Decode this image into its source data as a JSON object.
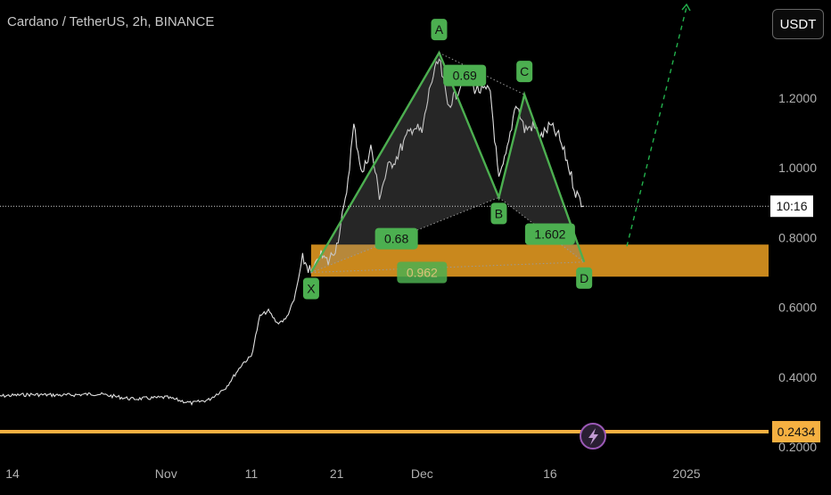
{
  "header": {
    "title": "Cardano / TetherUS, 2h, BINANCE",
    "currency": "USDT"
  },
  "chart_data": {
    "type": "line",
    "ylim": [
      0.2,
      1.35
    ],
    "y_ticks": [
      0.2,
      0.4,
      0.6,
      0.8,
      1.0,
      1.2
    ],
    "y_tick_labels": [
      "0.2000",
      "0.4000",
      "0.6000",
      "0.8000",
      "1.0000",
      "1.2000"
    ],
    "x_ticks": [
      {
        "label": "14",
        "date": "2024-10-14"
      },
      {
        "label": "Nov",
        "date": "2024-11-01"
      },
      {
        "label": "11",
        "date": "2024-11-11"
      },
      {
        "label": "21",
        "date": "2024-11-21"
      },
      {
        "label": "Dec",
        "date": "2024-12-01"
      },
      {
        "label": "16",
        "date": "2024-12-16"
      },
      {
        "label": "2025",
        "date": "2025-01-01"
      }
    ],
    "price_series": [
      [
        "2024-10-12",
        0.345
      ],
      [
        "2024-10-16",
        0.35
      ],
      [
        "2024-10-20",
        0.348
      ],
      [
        "2024-10-24",
        0.352
      ],
      [
        "2024-10-28",
        0.337
      ],
      [
        "2024-11-01",
        0.342
      ],
      [
        "2024-11-04",
        0.325
      ],
      [
        "2024-11-06",
        0.335
      ],
      [
        "2024-11-08",
        0.37
      ],
      [
        "2024-11-10",
        0.44
      ],
      [
        "2024-11-11",
        0.46
      ],
      [
        "2024-11-12",
        0.575
      ],
      [
        "2024-11-13",
        0.59
      ],
      [
        "2024-11-14",
        0.555
      ],
      [
        "2024-11-15",
        0.565
      ],
      [
        "2024-11-16",
        0.62
      ],
      [
        "2024-11-17",
        0.74
      ],
      [
        "2024-11-18",
        0.7
      ],
      [
        "2024-11-19",
        0.75
      ],
      [
        "2024-11-20",
        0.73
      ],
      [
        "2024-11-21",
        0.78
      ],
      [
        "2024-11-22",
        0.9
      ],
      [
        "2024-11-23",
        1.12
      ],
      [
        "2024-11-24",
        0.98
      ],
      [
        "2024-11-25",
        1.06
      ],
      [
        "2024-11-26",
        0.92
      ],
      [
        "2024-11-27",
        1.0
      ],
      [
        "2024-11-28",
        1.03
      ],
      [
        "2024-11-29",
        1.08
      ],
      [
        "2024-11-30",
        1.12
      ],
      [
        "2024-12-01",
        1.1
      ],
      [
        "2024-12-02",
        1.24
      ],
      [
        "2024-12-03",
        1.31
      ],
      [
        "2024-12-04",
        1.18
      ],
      [
        "2024-12-05",
        1.21
      ],
      [
        "2024-12-06",
        1.27
      ],
      [
        "2024-12-07",
        1.23
      ],
      [
        "2024-12-08",
        1.22
      ],
      [
        "2024-12-09",
        1.22
      ],
      [
        "2024-12-10",
        0.96
      ],
      [
        "2024-12-11",
        1.05
      ],
      [
        "2024-12-12",
        1.19
      ],
      [
        "2024-12-13",
        1.11
      ],
      [
        "2024-12-14",
        1.12
      ],
      [
        "2024-12-15",
        1.09
      ],
      [
        "2024-12-16",
        1.12
      ],
      [
        "2024-12-17",
        1.09
      ],
      [
        "2024-12-18",
        1.02
      ],
      [
        "2024-12-19",
        0.93
      ],
      [
        "2024-12-20",
        0.89
      ]
    ],
    "pattern": {
      "points": [
        {
          "label": "X",
          "date": "2024-11-18",
          "price": 0.7
        },
        {
          "label": "A",
          "date": "2024-12-03",
          "price": 1.33
        },
        {
          "label": "B",
          "date": "2024-12-10",
          "price": 0.915
        },
        {
          "label": "C",
          "date": "2024-12-13",
          "price": 1.21
        },
        {
          "label": "D",
          "date": "2024-12-20",
          "price": 0.73
        }
      ],
      "ratios": [
        {
          "value": "0.68",
          "date": "2024-11-28",
          "price": 0.797
        },
        {
          "value": "0.69",
          "date": "2024-12-06",
          "price": 1.265
        },
        {
          "value": "1.602",
          "date": "2024-12-16",
          "price": 0.81
        },
        {
          "value": "0.962",
          "date": "2024-12-01",
          "price": 0.7
        }
      ],
      "zone": {
        "from": "2024-11-18",
        "to": "2025-01-05",
        "low": 0.688,
        "high": 0.78
      },
      "projection": [
        [
          "2024-12-25",
          0.775
        ],
        [
          "2025-01-01",
          1.33
        ]
      ]
    },
    "current_price_label": "10:16",
    "current_price_value": 0.89,
    "support_label": "0.2434",
    "support_value": 0.2434,
    "colors": {
      "pattern": "#4caf50",
      "label_bg": "#4caf50",
      "zone": "#f5a623",
      "support": "#f5b041",
      "price": "#e0e0e0",
      "axis_text": "#b0b0b0",
      "projection": "#22b14c",
      "ratio_in_zone": "#d9c27a"
    }
  },
  "icons": {
    "lightning": "lightning-icon"
  }
}
